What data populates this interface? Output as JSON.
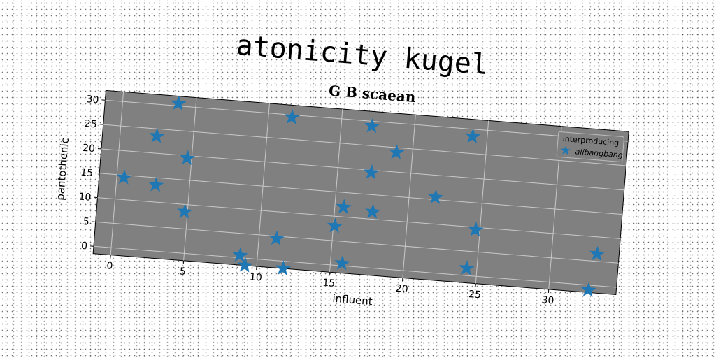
{
  "chart_data": {
    "type": "scatter",
    "title": "atonicity kugel",
    "subtitle": "G B scaean",
    "xlabel": "influent",
    "ylabel": "pantothenic",
    "xlim": [
      -1.2,
      34.6
    ],
    "ylim": [
      -1.5,
      32
    ],
    "xticks": [
      0,
      5,
      10,
      15,
      20,
      25,
      30
    ],
    "yticks": [
      0,
      5,
      10,
      15,
      20,
      25,
      30
    ],
    "grid": true,
    "legend": {
      "title": "interproducing",
      "placement": "top-right"
    },
    "series": [
      {
        "name": "alibangbang",
        "color": "#1f77b4",
        "marker": "star",
        "points": [
          {
            "x": 0.5,
            "y": 14.5
          },
          {
            "x": 2.5,
            "y": 23.5
          },
          {
            "x": 2.7,
            "y": 13.5
          },
          {
            "x": 3.8,
            "y": 30.5
          },
          {
            "x": 4.7,
            "y": 19.5
          },
          {
            "x": 4.8,
            "y": 8.5
          },
          {
            "x": 8.8,
            "y": 0.5
          },
          {
            "x": 9.2,
            "y": -1.5
          },
          {
            "x": 11.2,
            "y": 4.5
          },
          {
            "x": 11.6,
            "y": 29.5
          },
          {
            "x": 11.8,
            "y": -1.5
          },
          {
            "x": 15.1,
            "y": 8.0
          },
          {
            "x": 15.6,
            "y": 12.0
          },
          {
            "x": 15.8,
            "y": 0.5
          },
          {
            "x": 17.1,
            "y": 29.0
          },
          {
            "x": 17.3,
            "y": 19.5
          },
          {
            "x": 17.6,
            "y": 11.5
          },
          {
            "x": 18.9,
            "y": 24.0
          },
          {
            "x": 21.8,
            "y": 15.5
          },
          {
            "x": 24.0,
            "y": 28.5
          },
          {
            "x": 24.3,
            "y": 1.5
          },
          {
            "x": 24.7,
            "y": 9.5
          },
          {
            "x": 32.7,
            "y": -1.0
          },
          {
            "x": 33.1,
            "y": 6.5
          }
        ]
      }
    ]
  }
}
